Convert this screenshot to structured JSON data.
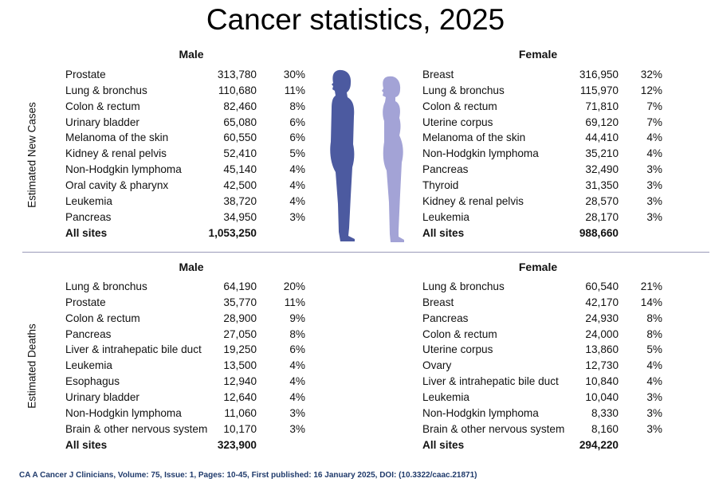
{
  "title": "Cancer statistics, 2025",
  "colors": {
    "male_figure": "#4c5aa0",
    "female_figure": "#a3a3d6",
    "citation": "#1f3a6b"
  },
  "new_cases": {
    "label": "Estimated New Cases",
    "male": {
      "header": "Male",
      "rows": [
        {
          "site": "Prostate",
          "count": "313,780",
          "pct": "30%"
        },
        {
          "site": "Lung & bronchus",
          "count": "110,680",
          "pct": "11%"
        },
        {
          "site": "Colon & rectum",
          "count": "82,460",
          "pct": "8%"
        },
        {
          "site": "Urinary bladder",
          "count": "65,080",
          "pct": "6%"
        },
        {
          "site": "Melanoma of the skin",
          "count": "60,550",
          "pct": "6%"
        },
        {
          "site": "Kidney & renal pelvis",
          "count": "52,410",
          "pct": "5%"
        },
        {
          "site": "Non-Hodgkin lymphoma",
          "count": "45,140",
          "pct": "4%"
        },
        {
          "site": "Oral cavity & pharynx",
          "count": "42,500",
          "pct": "4%"
        },
        {
          "site": "Leukemia",
          "count": "38,720",
          "pct": "4%"
        },
        {
          "site": "Pancreas",
          "count": "34,950",
          "pct": "3%"
        }
      ],
      "total": {
        "site": "All sites",
        "count": "1,053,250"
      }
    },
    "female": {
      "header": "Female",
      "rows": [
        {
          "site": "Breast",
          "count": "316,950",
          "pct": "32%"
        },
        {
          "site": "Lung & bronchus",
          "count": "115,970",
          "pct": "12%"
        },
        {
          "site": "Colon & rectum",
          "count": "71,810",
          "pct": "7%"
        },
        {
          "site": "Uterine corpus",
          "count": "69,120",
          "pct": "7%"
        },
        {
          "site": "Melanoma of the skin",
          "count": "44,410",
          "pct": "4%"
        },
        {
          "site": "Non-Hodgkin lymphoma",
          "count": "35,210",
          "pct": "4%"
        },
        {
          "site": "Pancreas",
          "count": "32,490",
          "pct": "3%"
        },
        {
          "site": "Thyroid",
          "count": "31,350",
          "pct": "3%"
        },
        {
          "site": "Kidney & renal pelvis",
          "count": "28,570",
          "pct": "3%"
        },
        {
          "site": "Leukemia",
          "count": "28,170",
          "pct": "3%"
        }
      ],
      "total": {
        "site": "All sites",
        "count": "988,660"
      }
    }
  },
  "deaths": {
    "label": "Estimated Deaths",
    "male": {
      "header": "Male",
      "rows": [
        {
          "site": "Lung & bronchus",
          "count": "64,190",
          "pct": "20%"
        },
        {
          "site": "Prostate",
          "count": "35,770",
          "pct": "11%"
        },
        {
          "site": "Colon & rectum",
          "count": "28,900",
          "pct": "9%"
        },
        {
          "site": "Pancreas",
          "count": "27,050",
          "pct": "8%"
        },
        {
          "site": "Liver & intrahepatic bile duct",
          "count": "19,250",
          "pct": "6%"
        },
        {
          "site": "Leukemia",
          "count": "13,500",
          "pct": "4%"
        },
        {
          "site": "Esophagus",
          "count": "12,940",
          "pct": "4%"
        },
        {
          "site": "Urinary bladder",
          "count": "12,640",
          "pct": "4%"
        },
        {
          "site": "Non-Hodgkin lymphoma",
          "count": "11,060",
          "pct": "3%"
        },
        {
          "site": "Brain & other nervous system",
          "count": "10,170",
          "pct": "3%"
        }
      ],
      "total": {
        "site": "All sites",
        "count": "323,900"
      }
    },
    "female": {
      "header": "Female",
      "rows": [
        {
          "site": "Lung & bronchus",
          "count": "60,540",
          "pct": "21%"
        },
        {
          "site": "Breast",
          "count": "42,170",
          "pct": "14%"
        },
        {
          "site": "Pancreas",
          "count": "24,930",
          "pct": "8%"
        },
        {
          "site": "Colon & rectum",
          "count": "24,000",
          "pct": "8%"
        },
        {
          "site": "Uterine corpus",
          "count": "13,860",
          "pct": "5%"
        },
        {
          "site": "Ovary",
          "count": "12,730",
          "pct": "4%"
        },
        {
          "site": "Liver & intrahepatic bile duct",
          "count": "10,840",
          "pct": "4%"
        },
        {
          "site": "Leukemia",
          "count": "10,040",
          "pct": "3%"
        },
        {
          "site": "Non-Hodgkin lymphoma",
          "count": "8,330",
          "pct": "3%"
        },
        {
          "site": "Brain & other nervous system",
          "count": "8,160",
          "pct": "3%"
        }
      ],
      "total": {
        "site": "All sites",
        "count": "294,220"
      }
    }
  },
  "citation": "CA A Cancer J Clinicians, Volume: 75, Issue: 1, Pages: 10-45, First published: 16 January 2025, DOI: (10.3322/caac.21871)"
}
